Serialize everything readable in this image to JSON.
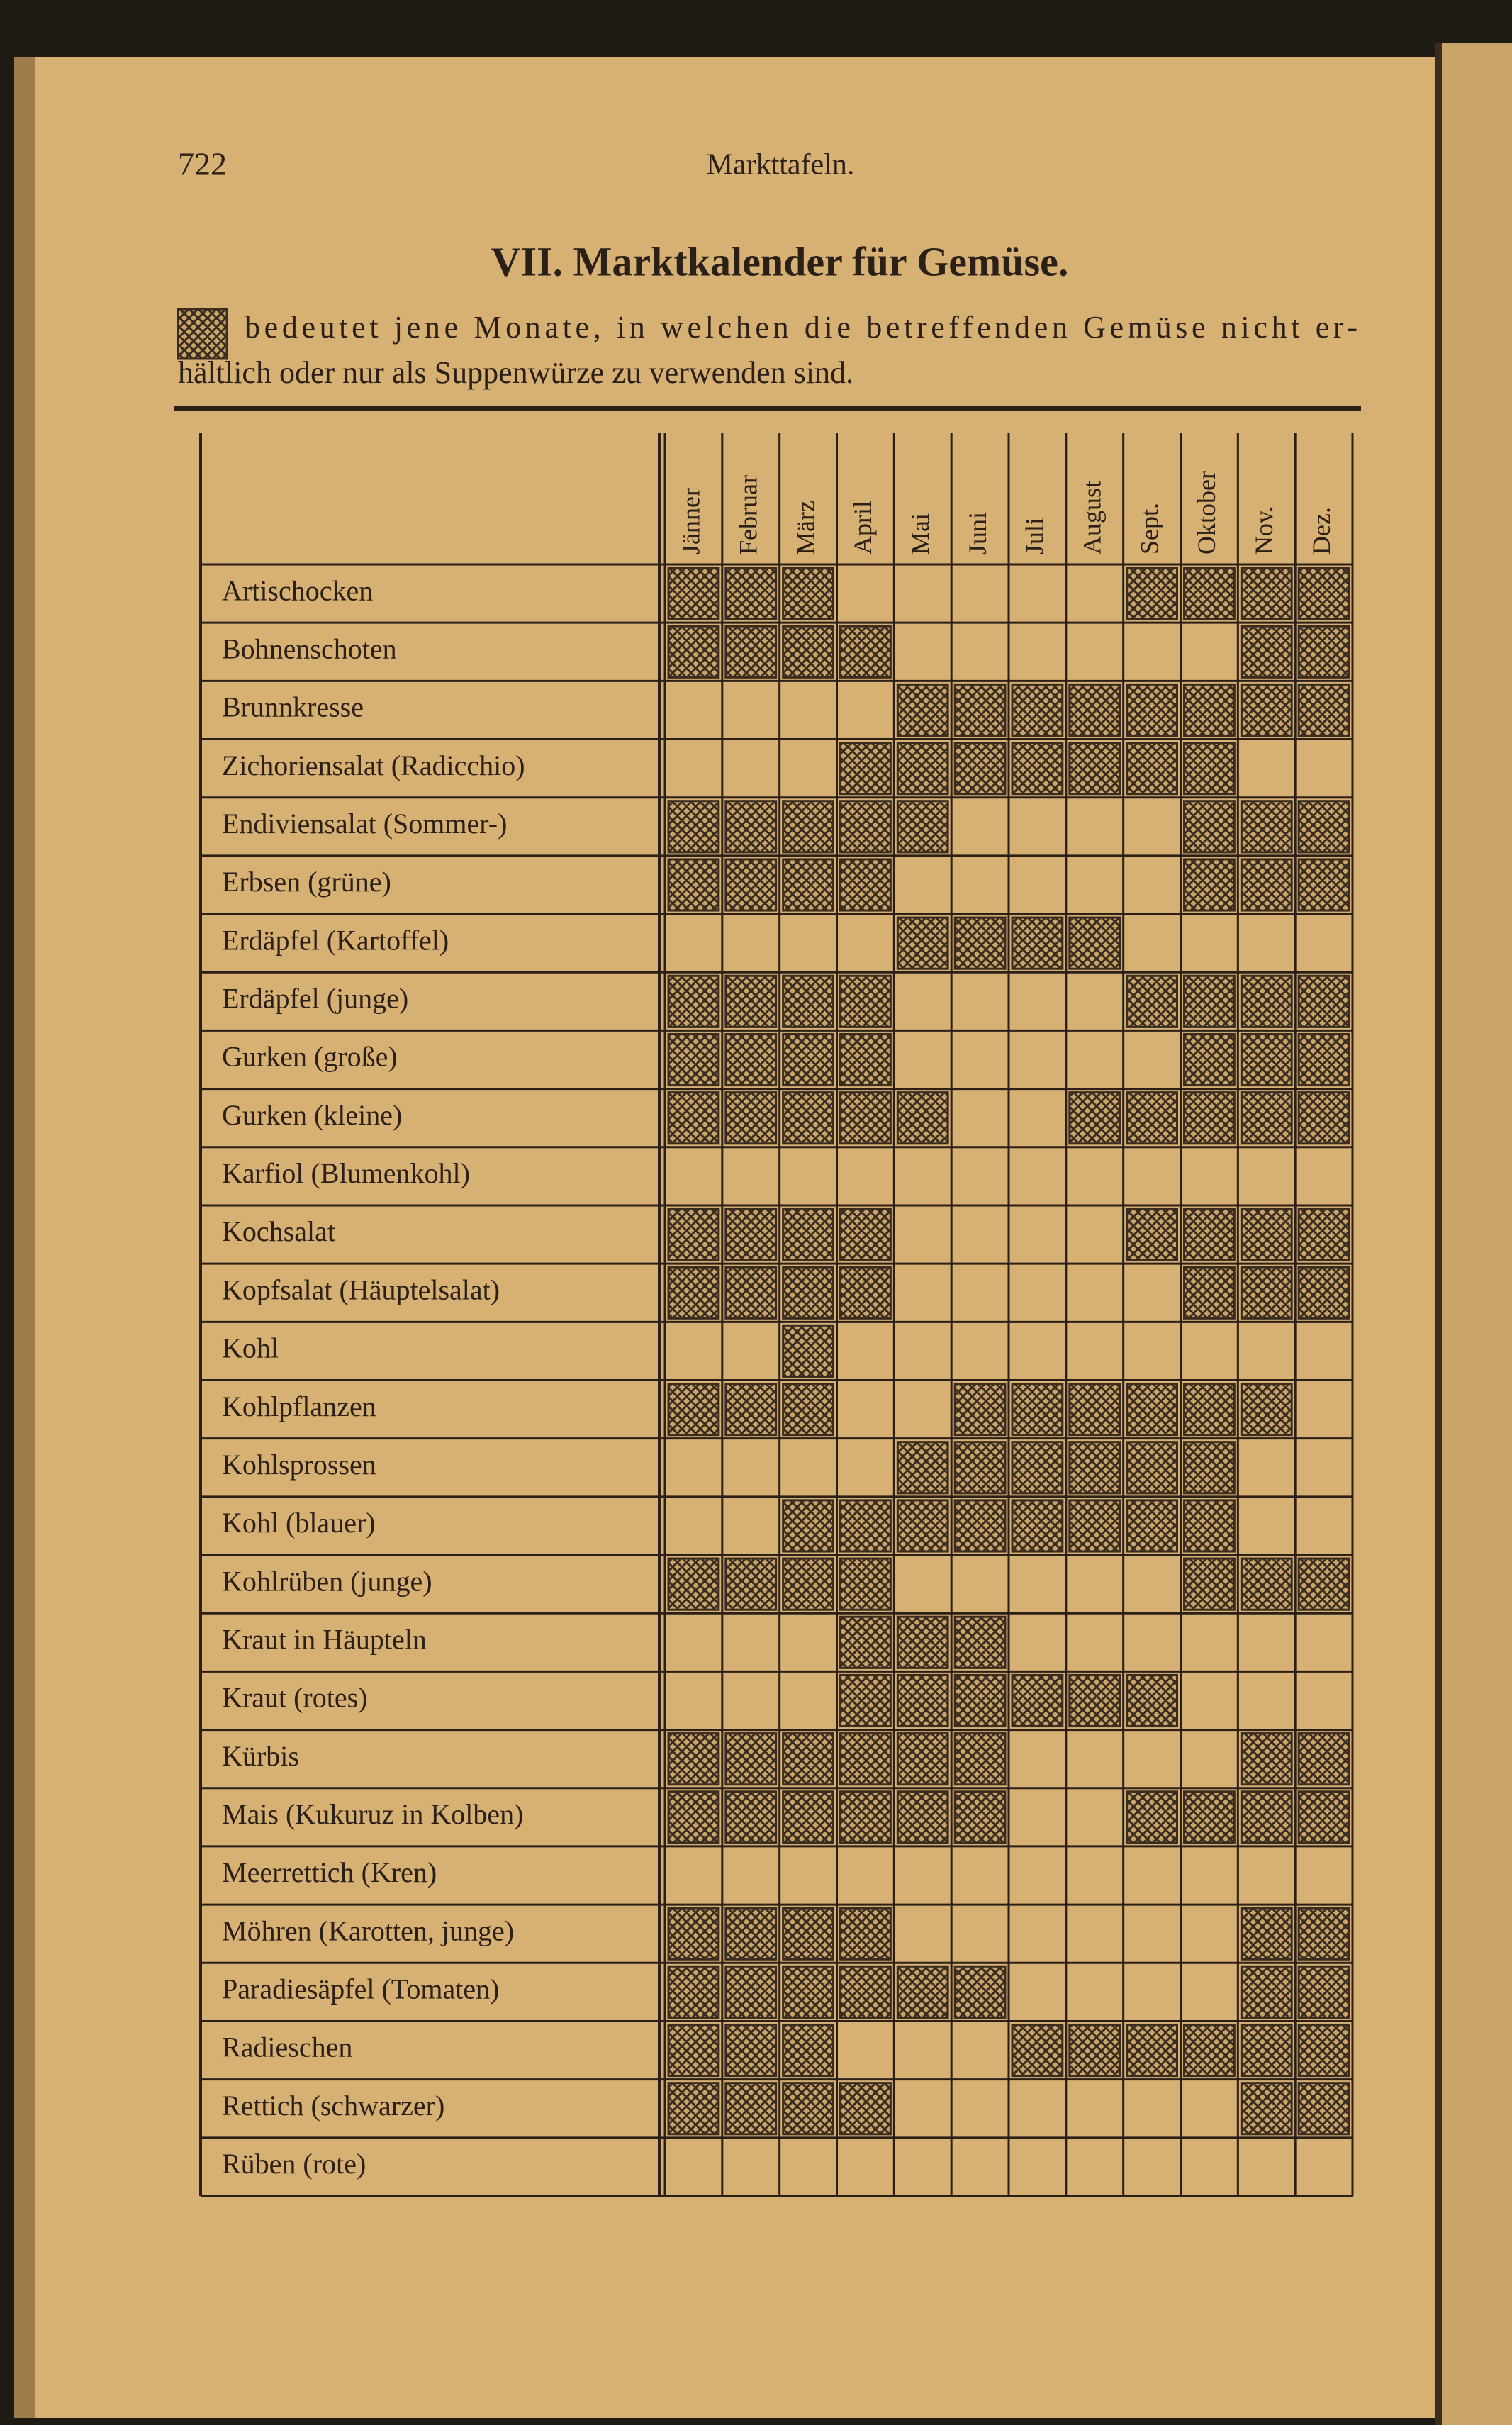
{
  "page": {
    "number": "722",
    "running_head": "Markttafeln.",
    "title": "VII. Marktkalender für Gemüse.",
    "legend": [
      "bedeutet jene Monate, in welchen die betreffenden Gemüse nicht er-",
      "hältlich oder nur als Suppenwürze zu verwenden sind."
    ]
  },
  "table": {
    "months": [
      "Jänner",
      "Februar",
      "März",
      "April",
      "Mai",
      "Juni",
      "Juli",
      "August",
      "Sept.",
      "Oktober",
      "Nov.",
      "Dez."
    ],
    "rows": [
      {
        "label": "Artischocken",
        "hatched": [
          1,
          1,
          1,
          0,
          0,
          0,
          0,
          0,
          1,
          1,
          1,
          1
        ]
      },
      {
        "label": "Bohnenschoten",
        "hatched": [
          1,
          1,
          1,
          1,
          0,
          0,
          0,
          0,
          0,
          0,
          1,
          1
        ]
      },
      {
        "label": "Brunnkresse",
        "hatched": [
          0,
          0,
          0,
          0,
          1,
          1,
          1,
          1,
          1,
          1,
          1,
          1
        ]
      },
      {
        "label": "Zichoriensalat (Radicchio)",
        "hatched": [
          0,
          0,
          0,
          1,
          1,
          1,
          1,
          1,
          1,
          1,
          0,
          0
        ]
      },
      {
        "label": "Endiviensalat (Sommer-)",
        "hatched": [
          1,
          1,
          1,
          1,
          1,
          0,
          0,
          0,
          0,
          1,
          1,
          1
        ]
      },
      {
        "label": "Erbsen (grüne)",
        "hatched": [
          1,
          1,
          1,
          1,
          0,
          0,
          0,
          0,
          0,
          1,
          1,
          1
        ]
      },
      {
        "label": "Erdäpfel (Kartoffel)",
        "hatched": [
          0,
          0,
          0,
          0,
          1,
          1,
          1,
          1,
          0,
          0,
          0,
          0
        ]
      },
      {
        "label": "Erdäpfel (junge)",
        "hatched": [
          1,
          1,
          1,
          1,
          0,
          0,
          0,
          0,
          1,
          1,
          1,
          1
        ]
      },
      {
        "label": "Gurken (große)",
        "hatched": [
          1,
          1,
          1,
          1,
          0,
          0,
          0,
          0,
          0,
          1,
          1,
          1
        ]
      },
      {
        "label": "Gurken (kleine)",
        "hatched": [
          1,
          1,
          1,
          1,
          1,
          0,
          0,
          1,
          1,
          1,
          1,
          1
        ]
      },
      {
        "label": "Karfiol (Blumenkohl)",
        "hatched": [
          0,
          0,
          0,
          0,
          0,
          0,
          0,
          0,
          0,
          0,
          0,
          0
        ]
      },
      {
        "label": "Kochsalat",
        "hatched": [
          1,
          1,
          1,
          1,
          0,
          0,
          0,
          0,
          1,
          1,
          1,
          1
        ]
      },
      {
        "label": "Kopfsalat (Häuptelsalat)",
        "hatched": [
          1,
          1,
          1,
          1,
          0,
          0,
          0,
          0,
          0,
          1,
          1,
          1
        ]
      },
      {
        "label": "Kohl",
        "hatched": [
          0,
          0,
          1,
          0,
          0,
          0,
          0,
          0,
          0,
          0,
          0,
          0
        ]
      },
      {
        "label": "Kohlpflanzen",
        "hatched": [
          1,
          1,
          1,
          0,
          0,
          1,
          1,
          1,
          1,
          1,
          1,
          0
        ]
      },
      {
        "label": "Kohlsprossen",
        "hatched": [
          0,
          0,
          0,
          0,
          1,
          1,
          1,
          1,
          1,
          1,
          0,
          0
        ]
      },
      {
        "label": "Kohl (blauer)",
        "hatched": [
          0,
          0,
          1,
          1,
          1,
          1,
          1,
          1,
          1,
          1,
          0,
          0
        ]
      },
      {
        "label": "Kohlrüben (junge)",
        "hatched": [
          1,
          1,
          1,
          1,
          0,
          0,
          0,
          0,
          0,
          1,
          1,
          1
        ]
      },
      {
        "label": "Kraut in Häupteln",
        "hatched": [
          0,
          0,
          0,
          1,
          1,
          1,
          0,
          0,
          0,
          0,
          0,
          0
        ]
      },
      {
        "label": "Kraut (rotes)",
        "hatched": [
          0,
          0,
          0,
          1,
          1,
          1,
          1,
          1,
          1,
          0,
          0,
          0
        ]
      },
      {
        "label": "Kürbis",
        "hatched": [
          1,
          1,
          1,
          1,
          1,
          1,
          0,
          0,
          0,
          0,
          1,
          1
        ]
      },
      {
        "label": "Mais (Kukuruz in Kolben)",
        "hatched": [
          1,
          1,
          1,
          1,
          1,
          1,
          0,
          0,
          1,
          1,
          1,
          1
        ]
      },
      {
        "label": "Meerrettich (Kren)",
        "hatched": [
          0,
          0,
          0,
          0,
          0,
          0,
          0,
          0,
          0,
          0,
          0,
          0
        ]
      },
      {
        "label": "Möhren (Karotten, junge)",
        "hatched": [
          1,
          1,
          1,
          1,
          0,
          0,
          0,
          0,
          0,
          0,
          1,
          1
        ]
      },
      {
        "label": "Paradiesäpfel (Tomaten)",
        "hatched": [
          1,
          1,
          1,
          1,
          1,
          1,
          0,
          0,
          0,
          0,
          1,
          1
        ]
      },
      {
        "label": "Radieschen",
        "hatched": [
          1,
          1,
          1,
          0,
          0,
          0,
          1,
          1,
          1,
          1,
          1,
          1
        ]
      },
      {
        "label": "Rettich (schwarzer)",
        "hatched": [
          1,
          1,
          1,
          1,
          0,
          0,
          0,
          0,
          0,
          0,
          1,
          1
        ]
      },
      {
        "label": "Rüben (rote)",
        "hatched": [
          0,
          0,
          0,
          0,
          0,
          0,
          0,
          0,
          0,
          0,
          0,
          0
        ]
      }
    ]
  }
}
